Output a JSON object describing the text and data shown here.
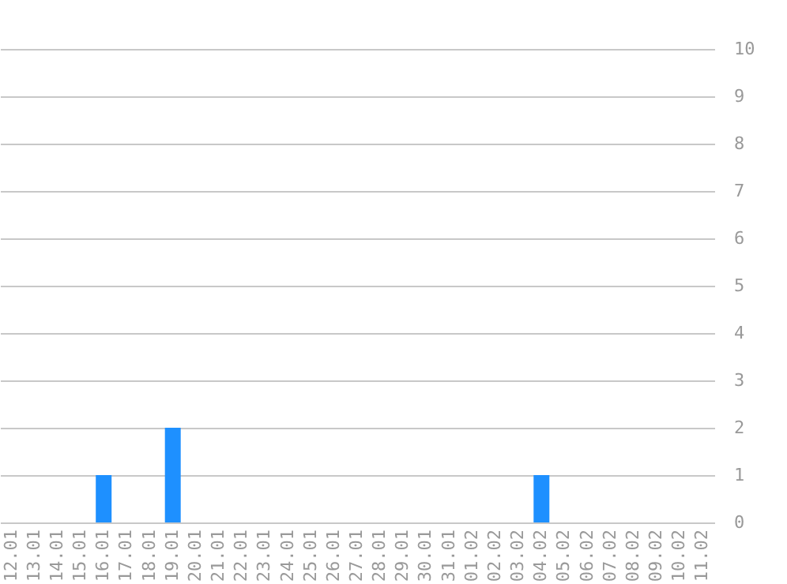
{
  "chart_data": {
    "type": "bar",
    "categories": [
      "12.01",
      "13.01",
      "14.01",
      "15.01",
      "16.01",
      "17.01",
      "18.01",
      "19.01",
      "20.01",
      "21.01",
      "22.01",
      "23.01",
      "24.01",
      "25.01",
      "26.01",
      "27.01",
      "28.01",
      "29.01",
      "30.01",
      "31.01",
      "01.02",
      "02.02",
      "03.02",
      "04.02",
      "05.02",
      "06.02",
      "07.02",
      "08.02",
      "09.02",
      "10.02",
      "11.02"
    ],
    "values": [
      0,
      0,
      0,
      0,
      1,
      0,
      0,
      2,
      0,
      0,
      0,
      0,
      0,
      0,
      0,
      0,
      0,
      0,
      0,
      0,
      0,
      0,
      0,
      1,
      0,
      0,
      0,
      0,
      0,
      0,
      0
    ],
    "color": "#1e90ff",
    "ylim": [
      0,
      10
    ],
    "yticks": [
      0,
      1,
      2,
      3,
      4,
      5,
      6,
      7,
      8,
      9,
      10
    ],
    "grid": "y"
  }
}
